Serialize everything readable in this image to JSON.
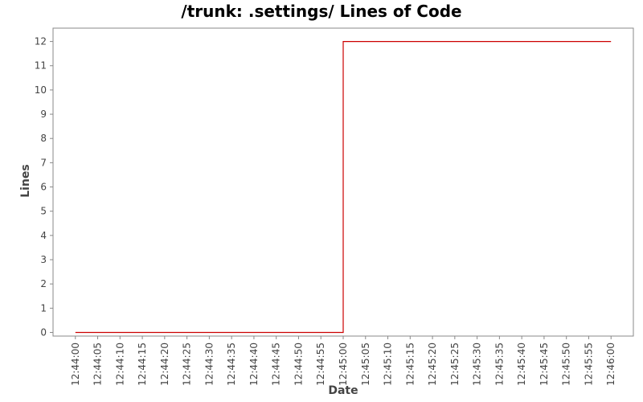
{
  "chart_data": {
    "type": "line",
    "title": "/trunk: .settings/ Lines of Code",
    "xlabel": "Date",
    "ylabel": "Lines",
    "x_ticks": [
      "12:44:00",
      "12:44:05",
      "12:44:10",
      "12:44:15",
      "12:44:20",
      "12:44:25",
      "12:44:30",
      "12:44:35",
      "12:44:40",
      "12:44:45",
      "12:44:50",
      "12:44:55",
      "12:45:00",
      "12:45:05",
      "12:45:10",
      "12:45:15",
      "12:45:20",
      "12:45:25",
      "12:45:30",
      "12:45:35",
      "12:45:40",
      "12:45:45",
      "12:45:50",
      "12:45:55",
      "12:46:00"
    ],
    "y_ticks": [
      "0",
      "1",
      "2",
      "3",
      "4",
      "5",
      "6",
      "7",
      "8",
      "9",
      "10",
      "11",
      "12"
    ],
    "xlim": [
      "12:43:55",
      "12:46:05"
    ],
    "ylim": [
      -0.15,
      12.55
    ],
    "step": true,
    "grid": false,
    "legend": "none",
    "series": [
      {
        "color": "#cc0000",
        "points": [
          {
            "x": "12:44:00",
            "y": 0
          },
          {
            "x": "12:45:00",
            "y": 0
          },
          {
            "x": "12:45:00",
            "y": 12
          },
          {
            "x": "12:46:00",
            "y": 12
          }
        ]
      }
    ]
  }
}
